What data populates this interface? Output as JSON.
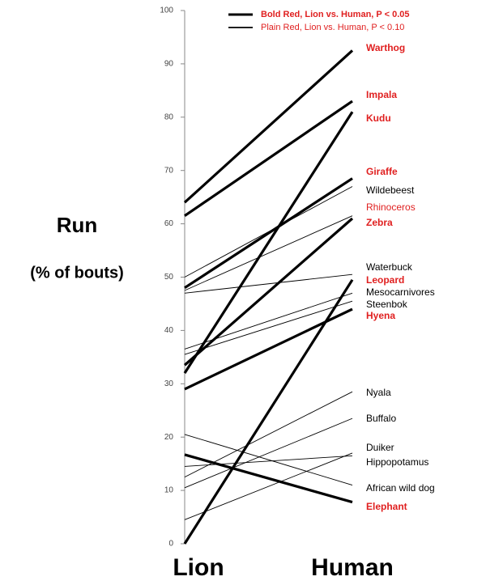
{
  "chart_data": {
    "type": "slope",
    "y_label": "Run",
    "y_label_sub": "(% of bouts)",
    "categories": [
      "Lion",
      "Human"
    ],
    "ylim": [
      0,
      100
    ],
    "yticks": [
      0,
      10,
      20,
      30,
      40,
      50,
      60,
      70,
      80,
      90,
      100
    ],
    "legend": [
      {
        "label": "Bold Red, Lion vs. Human, P < 0.05",
        "bold": true,
        "color": "#e02020"
      },
      {
        "label": "Plain Red, Lion vs. Human, P < 0.10",
        "bold": false,
        "color": "#e02020"
      }
    ],
    "series": [
      {
        "name": "Warthog",
        "values": [
          64,
          92.5
        ],
        "bold": true,
        "color": "#000000",
        "label_color": "#e02020"
      },
      {
        "name": "Impala",
        "values": [
          61.5,
          83
        ],
        "bold": true,
        "color": "#000000",
        "label_color": "#e02020"
      },
      {
        "name": "Kudu",
        "values": [
          32,
          81
        ],
        "bold": true,
        "color": "#000000",
        "label_color": "#e02020"
      },
      {
        "name": "Giraffe",
        "values": [
          48,
          68.5
        ],
        "bold": true,
        "color": "#000000",
        "label_color": "#e02020"
      },
      {
        "name": "Wildebeest",
        "values": [
          50,
          67
        ],
        "bold": false,
        "color": "#000000",
        "label_color": "#000000"
      },
      {
        "name": "Rhinoceros",
        "values": [
          47.5,
          61.5
        ],
        "bold": false,
        "color": "#000000",
        "label_color": "#e02020"
      },
      {
        "name": "Zebra",
        "values": [
          33.5,
          61
        ],
        "bold": true,
        "color": "#000000",
        "label_color": "#e02020"
      },
      {
        "name": "Waterbuck",
        "values": [
          47,
          50.5
        ],
        "bold": false,
        "color": "#000000",
        "label_color": "#000000"
      },
      {
        "name": "Leopard",
        "values": [
          0,
          49.5
        ],
        "bold": true,
        "color": "#000000",
        "label_color": "#e02020"
      },
      {
        "name": "Mesocarnivores",
        "values": [
          36.5,
          47
        ],
        "bold": false,
        "color": "#000000",
        "label_color": "#000000"
      },
      {
        "name": "Steenbok",
        "values": [
          35.5,
          45.5
        ],
        "bold": false,
        "color": "#000000",
        "label_color": "#000000"
      },
      {
        "name": "Hyena",
        "values": [
          29,
          44
        ],
        "bold": true,
        "color": "#000000",
        "label_color": "#e02020"
      },
      {
        "name": "Nyala",
        "values": [
          12.5,
          28.5
        ],
        "bold": false,
        "color": "#000000",
        "label_color": "#000000"
      },
      {
        "name": "Buffalo",
        "values": [
          10.5,
          23.5
        ],
        "bold": false,
        "color": "#000000",
        "label_color": "#000000"
      },
      {
        "name": "Duiker",
        "values": [
          4.5,
          17
        ],
        "bold": false,
        "color": "#000000",
        "label_color": "#000000"
      },
      {
        "name": "Hippopotamus",
        "values": [
          14.5,
          16.5
        ],
        "bold": false,
        "color": "#000000",
        "label_color": "#000000"
      },
      {
        "name": "African wild dog",
        "values": [
          20.5,
          11
        ],
        "bold": false,
        "color": "#000000",
        "label_color": "#000000"
      },
      {
        "name": "Elephant",
        "values": [
          16.7,
          7.8
        ],
        "bold": true,
        "color": "#000000",
        "label_color": "#e02020"
      }
    ]
  }
}
